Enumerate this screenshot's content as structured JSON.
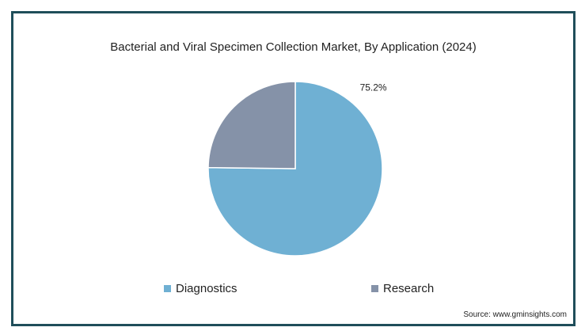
{
  "chart_data": {
    "type": "pie",
    "title": "Bacterial and Viral Specimen Collection Market, By Application (2024)",
    "categories": [
      "Diagnostics",
      "Research"
    ],
    "values": [
      75.2,
      24.8
    ],
    "colors": [
      "#6fb0d3",
      "#8592a8"
    ],
    "data_labels": [
      "75.2%",
      ""
    ],
    "start_angle_deg": 0,
    "direction": "clockwise",
    "legend_position": "bottom"
  },
  "source": "Source: www.gminsights.com"
}
